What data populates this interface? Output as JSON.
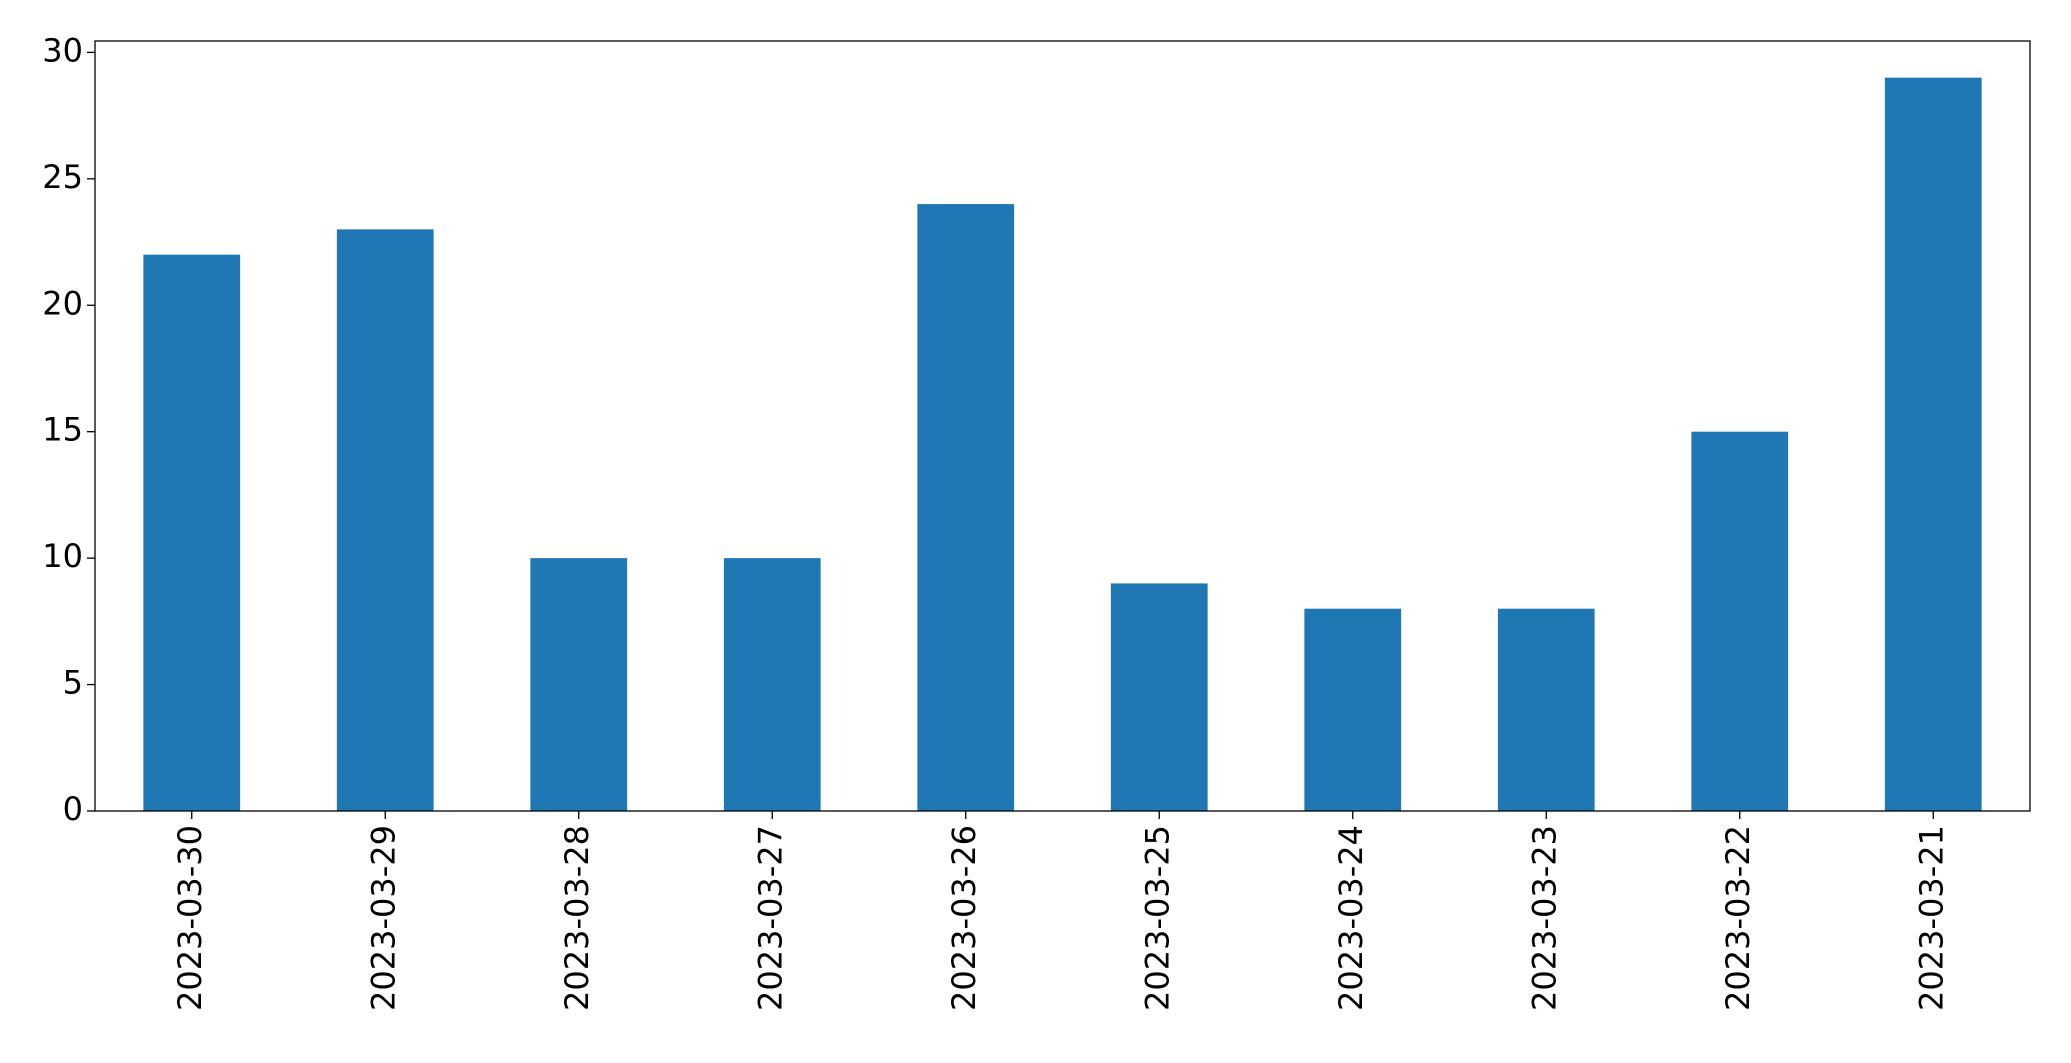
{
  "chart_data": {
    "type": "bar",
    "categories": [
      "2023-03-30",
      "2023-03-29",
      "2023-03-28",
      "2023-03-27",
      "2023-03-26",
      "2023-03-25",
      "2023-03-24",
      "2023-03-23",
      "2023-03-22",
      "2023-03-21"
    ],
    "values": [
      22,
      23,
      10,
      10,
      24,
      9,
      8,
      8,
      15,
      29
    ],
    "color": "#1f77b4",
    "ylim": [
      0,
      30.45
    ],
    "yticks": [
      0,
      5,
      10,
      15,
      20,
      25,
      30
    ],
    "grid": false
  }
}
